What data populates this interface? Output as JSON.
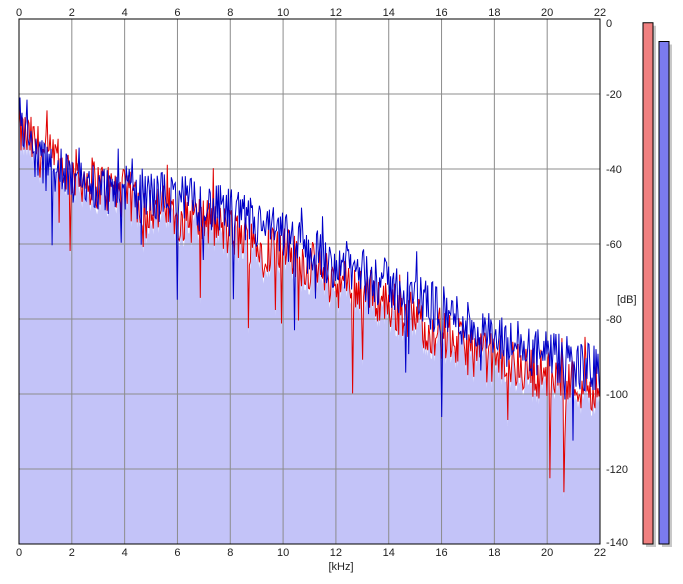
{
  "chart_data": {
    "type": "area",
    "xlabel": "[kHz]",
    "ylabel": "[dB]",
    "xlim": [
      0,
      22
    ],
    "ylim": [
      -140,
      0
    ],
    "x_ticks": [
      "0",
      "2",
      "4",
      "6",
      "8",
      "10",
      "12",
      "14",
      "16",
      "18",
      "20",
      "22"
    ],
    "y_ticks": [
      "0",
      "-20",
      "-40",
      "-60",
      "-80",
      "-100",
      "-120",
      "-140"
    ],
    "grid": true,
    "series": [
      {
        "color": "#e00000",
        "x": [
          0,
          0.5,
          1,
          2,
          3,
          4,
          5,
          6,
          7,
          8,
          9,
          10,
          11,
          12,
          13,
          14,
          15,
          16,
          17,
          18,
          19,
          20,
          21,
          22
        ],
        "values": [
          -30,
          -33,
          -37,
          -41,
          -44,
          -47,
          -50,
          -52,
          -54,
          -57,
          -60,
          -62,
          -66,
          -70,
          -72,
          -76,
          -80,
          -84,
          -88,
          -91,
          -93,
          -95,
          -97,
          -98
        ]
      },
      {
        "color": "#0000c8",
        "x": [
          0,
          0.5,
          1,
          2,
          3,
          4,
          5,
          6,
          7,
          8,
          9,
          10,
          11,
          12,
          13,
          14,
          15,
          16,
          17,
          18,
          19,
          20,
          21,
          22
        ],
        "values": [
          -27,
          -35,
          -39,
          -43,
          -45,
          -46,
          -47,
          -48,
          -50,
          -52,
          -55,
          -58,
          -62,
          -65,
          -68,
          -71,
          -74,
          -78,
          -81,
          -86,
          -88,
          -90,
          -92,
          -94
        ]
      }
    ],
    "fill_color": "#c3c3f8",
    "meters": [
      {
        "color": "#f08080",
        "level": -1
      },
      {
        "color": "#7b7bef",
        "level": -6
      }
    ]
  }
}
